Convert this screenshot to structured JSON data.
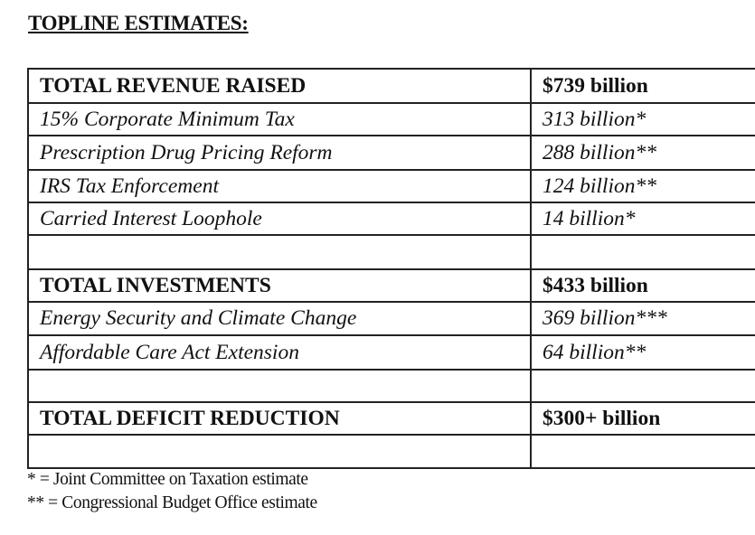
{
  "title": "TOPLINE ESTIMATES:",
  "rows": [
    {
      "type": "bold",
      "label": "TOTAL REVENUE RAISED",
      "value": "$739 billion"
    },
    {
      "type": "item",
      "label": "15% Corporate Minimum Tax",
      "value": "313 billion*"
    },
    {
      "type": "item",
      "label": "Prescription Drug Pricing Reform",
      "value": "288 billion**"
    },
    {
      "type": "item",
      "label": "IRS Tax Enforcement",
      "value": "124 billion**"
    },
    {
      "type": "item",
      "label": "Carried Interest Loophole",
      "value": "14 billion*"
    },
    {
      "type": "empty",
      "label": "",
      "value": ""
    },
    {
      "type": "bold",
      "label": "TOTAL INVESTMENTS",
      "value": "$433 billion"
    },
    {
      "type": "item",
      "label": "Energy Security and Climate Change",
      "value": "369 billion***"
    },
    {
      "type": "item",
      "label": "Affordable Care Act Extension",
      "value": "64 billion**"
    },
    {
      "type": "empty",
      "label": "",
      "value": ""
    },
    {
      "type": "bold",
      "label": "TOTAL DEFICIT REDUCTION",
      "value": "$300+ billion"
    },
    {
      "type": "empty",
      "label": "",
      "value": ""
    }
  ],
  "footnotes": [
    "* = Joint Committee on Taxation estimate",
    "** = Congressional Budget Office estimate"
  ]
}
